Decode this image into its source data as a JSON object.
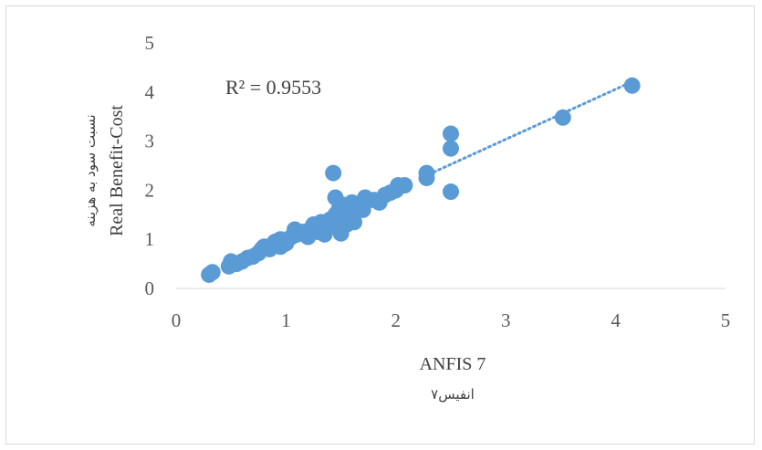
{
  "chart_data": {
    "type": "scatter",
    "title": "",
    "xlabel": "ANFIS 7",
    "xlabel_secondary": "انفیس۷",
    "ylabel": "Real Benefit-Cost",
    "ylabel_secondary": "نسبت سود به هزینه",
    "xlim": [
      0,
      5
    ],
    "ylim": [
      0,
      5
    ],
    "x_ticks": [
      "0",
      "1",
      "2",
      "3",
      "4",
      "5"
    ],
    "y_ticks": [
      "0",
      "1",
      "2",
      "3",
      "4",
      "5"
    ],
    "grid": false,
    "legend": "none",
    "annotation": "R² = 0.9553",
    "marker_color": "#5b9bd5",
    "trendline": {
      "style": "dotted",
      "color": "#5b9bd5",
      "x_range": [
        2.3,
        4.15
      ]
    },
    "series": [
      {
        "points": [
          [
            0.3,
            0.28
          ],
          [
            0.33,
            0.33
          ],
          [
            0.48,
            0.45
          ],
          [
            0.5,
            0.55
          ],
          [
            0.55,
            0.5
          ],
          [
            0.6,
            0.55
          ],
          [
            0.65,
            0.62
          ],
          [
            0.7,
            0.65
          ],
          [
            0.75,
            0.72
          ],
          [
            0.78,
            0.8
          ],
          [
            0.8,
            0.85
          ],
          [
            0.85,
            0.8
          ],
          [
            0.88,
            0.9
          ],
          [
            0.9,
            0.95
          ],
          [
            0.95,
            0.85
          ],
          [
            0.95,
            1.0
          ],
          [
            1.0,
            0.92
          ],
          [
            1.05,
            1.05
          ],
          [
            1.08,
            1.2
          ],
          [
            1.1,
            1.1
          ],
          [
            1.15,
            1.15
          ],
          [
            1.2,
            1.05
          ],
          [
            1.22,
            1.2
          ],
          [
            1.25,
            1.3
          ],
          [
            1.28,
            1.25
          ],
          [
            1.3,
            1.15
          ],
          [
            1.32,
            1.35
          ],
          [
            1.35,
            1.1
          ],
          [
            1.38,
            1.25
          ],
          [
            1.4,
            1.4
          ],
          [
            1.42,
            1.3
          ],
          [
            1.45,
            1.85
          ],
          [
            1.45,
            1.5
          ],
          [
            1.48,
            1.6
          ],
          [
            1.5,
            1.45
          ],
          [
            1.5,
            1.12
          ],
          [
            1.52,
            1.7
          ],
          [
            1.55,
            1.3
          ],
          [
            1.58,
            1.5
          ],
          [
            1.6,
            1.75
          ],
          [
            1.62,
            1.35
          ],
          [
            1.65,
            1.65
          ],
          [
            1.7,
            1.6
          ],
          [
            1.72,
            1.85
          ],
          [
            1.8,
            1.8
          ],
          [
            1.85,
            1.75
          ],
          [
            1.9,
            1.9
          ],
          [
            1.95,
            1.95
          ],
          [
            2.0,
            2.0
          ],
          [
            2.02,
            2.1
          ],
          [
            2.08,
            2.1
          ],
          [
            2.28,
            2.25
          ],
          [
            2.28,
            2.35
          ],
          [
            1.43,
            2.35
          ],
          [
            2.5,
            3.15
          ],
          [
            2.5,
            2.85
          ],
          [
            2.5,
            1.97
          ],
          [
            3.52,
            3.48
          ],
          [
            4.15,
            4.13
          ]
        ]
      }
    ]
  }
}
